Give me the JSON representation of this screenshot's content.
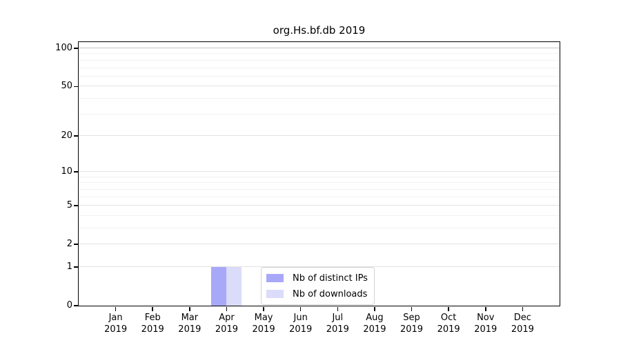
{
  "chart_data": {
    "type": "bar",
    "title": "org.Hs.bf.db 2019",
    "categories": [
      "Jan",
      "Feb",
      "Mar",
      "Apr",
      "May",
      "Jun",
      "Jul",
      "Aug",
      "Sep",
      "Oct",
      "Nov",
      "Dec"
    ],
    "tick_year": "2019",
    "series": [
      {
        "name": "Nb of distinct IPs",
        "color": "#a8a8f8",
        "values": [
          0,
          0,
          0,
          1,
          0,
          0,
          0,
          0,
          0,
          0,
          0,
          0
        ]
      },
      {
        "name": "Nb of downloads",
        "color": "#dbdbfa",
        "values": [
          0,
          0,
          0,
          1,
          0,
          0,
          0,
          0,
          0,
          0,
          0,
          0
        ]
      }
    ],
    "yscale": "log1p",
    "ylim": [
      0,
      112
    ],
    "yticks": [
      0,
      1,
      2,
      5,
      10,
      20,
      50,
      100
    ],
    "minor_gridlines": [
      3,
      4,
      6,
      7,
      8,
      9,
      30,
      40,
      60,
      70,
      80,
      90
    ],
    "grid": "horizontal",
    "legend_position": "inside-bottom-center",
    "xlabel": "",
    "ylabel": ""
  },
  "colors": {
    "background": "#ffffff",
    "axis_frame": "#000000",
    "grid_major": "#e2e2e2",
    "grid_minor": "#f1f1f1",
    "grid_top": "#c6c6c6",
    "legend_border": "#d2d2d2"
  }
}
